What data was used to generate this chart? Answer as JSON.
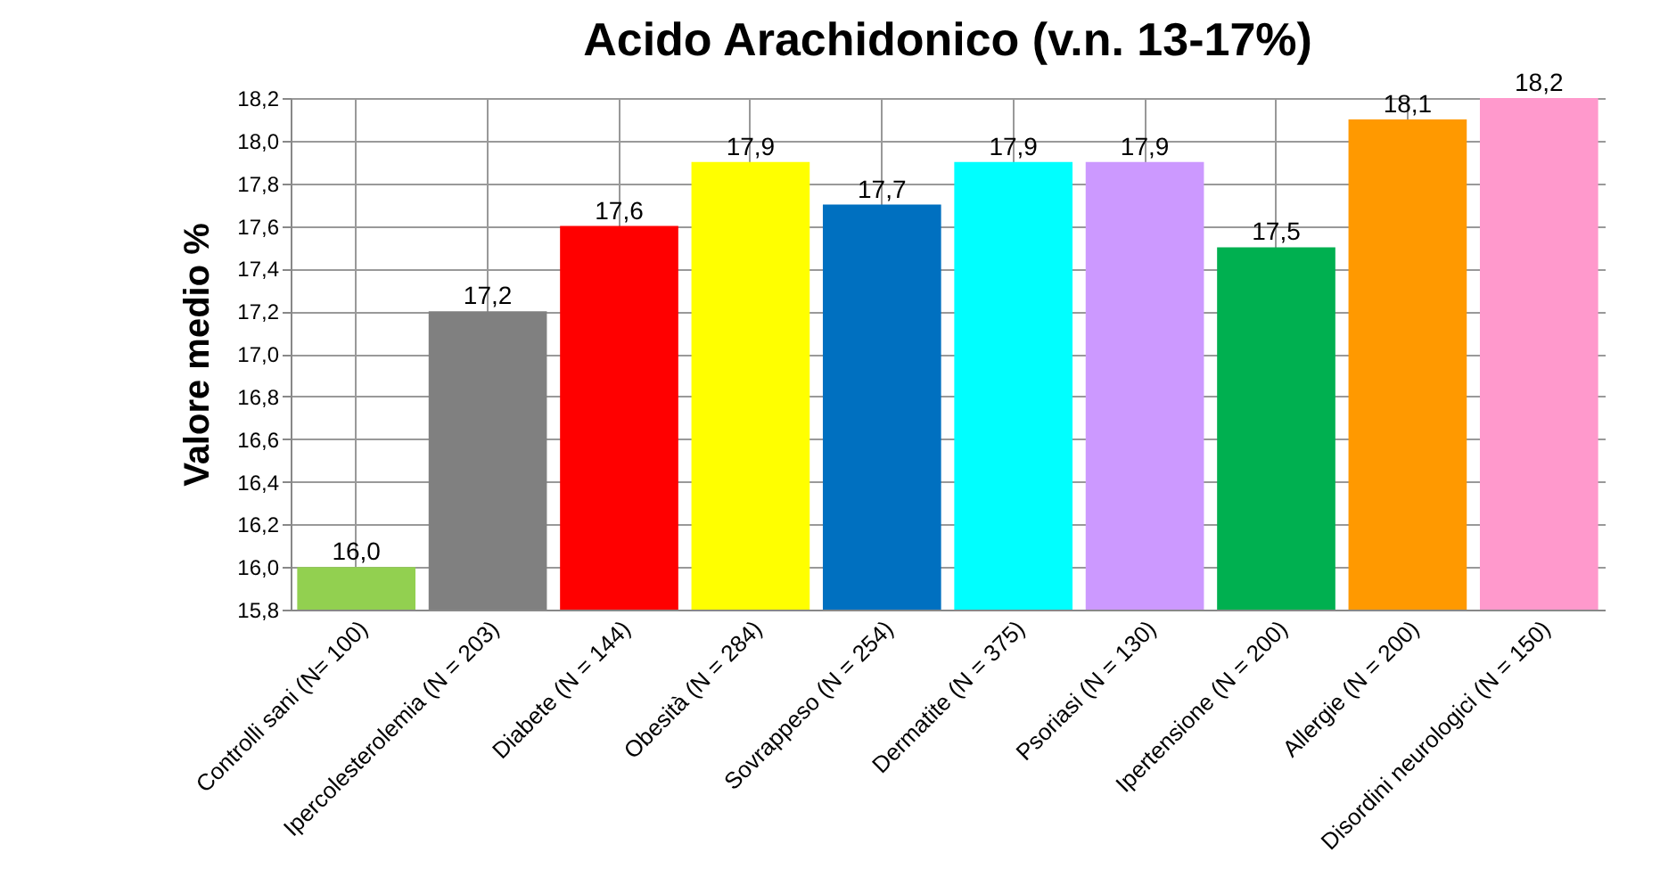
{
  "chart_data": {
    "type": "bar",
    "title": "Acido Arachidonico (v.n. 13-17%)",
    "ylabel": "Valore medio %",
    "categories": [
      "Controlli sani (N= 100)",
      "Ipercolesterolemia (N = 203)",
      "Diabete (N = 144)",
      "Obesità (N = 284)",
      "Sovrappeso (N = 254)",
      "Dermatite (N = 375)",
      "Psoriasi (N = 130)",
      "Ipertensione (N = 200)",
      "Allergie (N = 200)",
      "Disordini neurologici (N = 150)"
    ],
    "values": [
      16.0,
      17.2,
      17.6,
      17.9,
      17.7,
      17.9,
      17.9,
      17.5,
      18.1,
      18.2
    ],
    "value_labels": [
      "16,0",
      "17,2",
      "17,6",
      "17,9",
      "17,7",
      "17,9",
      "17,9",
      "17,5",
      "18,1",
      "18,2"
    ],
    "colors": [
      "#92d050",
      "#808080",
      "#ff0000",
      "#ffff00",
      "#0070c0",
      "#00ffff",
      "#cc99ff",
      "#00b050",
      "#ff9900",
      "#ff99cc"
    ],
    "ylim": [
      15.8,
      18.2
    ],
    "yticks": [
      {
        "value": 15.8,
        "label": "15,8"
      },
      {
        "value": 16.0,
        "label": "16,0"
      },
      {
        "value": 16.2,
        "label": "16,2"
      },
      {
        "value": 16.4,
        "label": "16,4"
      },
      {
        "value": 16.6,
        "label": "16,6"
      },
      {
        "value": 16.8,
        "label": "16,8"
      },
      {
        "value": 17.0,
        "label": "17,0"
      },
      {
        "value": 17.2,
        "label": "17,2"
      },
      {
        "value": 17.4,
        "label": "17,4"
      },
      {
        "value": 17.6,
        "label": "17,6"
      },
      {
        "value": 17.8,
        "label": "17,8"
      },
      {
        "value": 18.0,
        "label": "18,0"
      },
      {
        "value": 18.2,
        "label": "18,2"
      }
    ],
    "grid": true,
    "legend": false
  }
}
